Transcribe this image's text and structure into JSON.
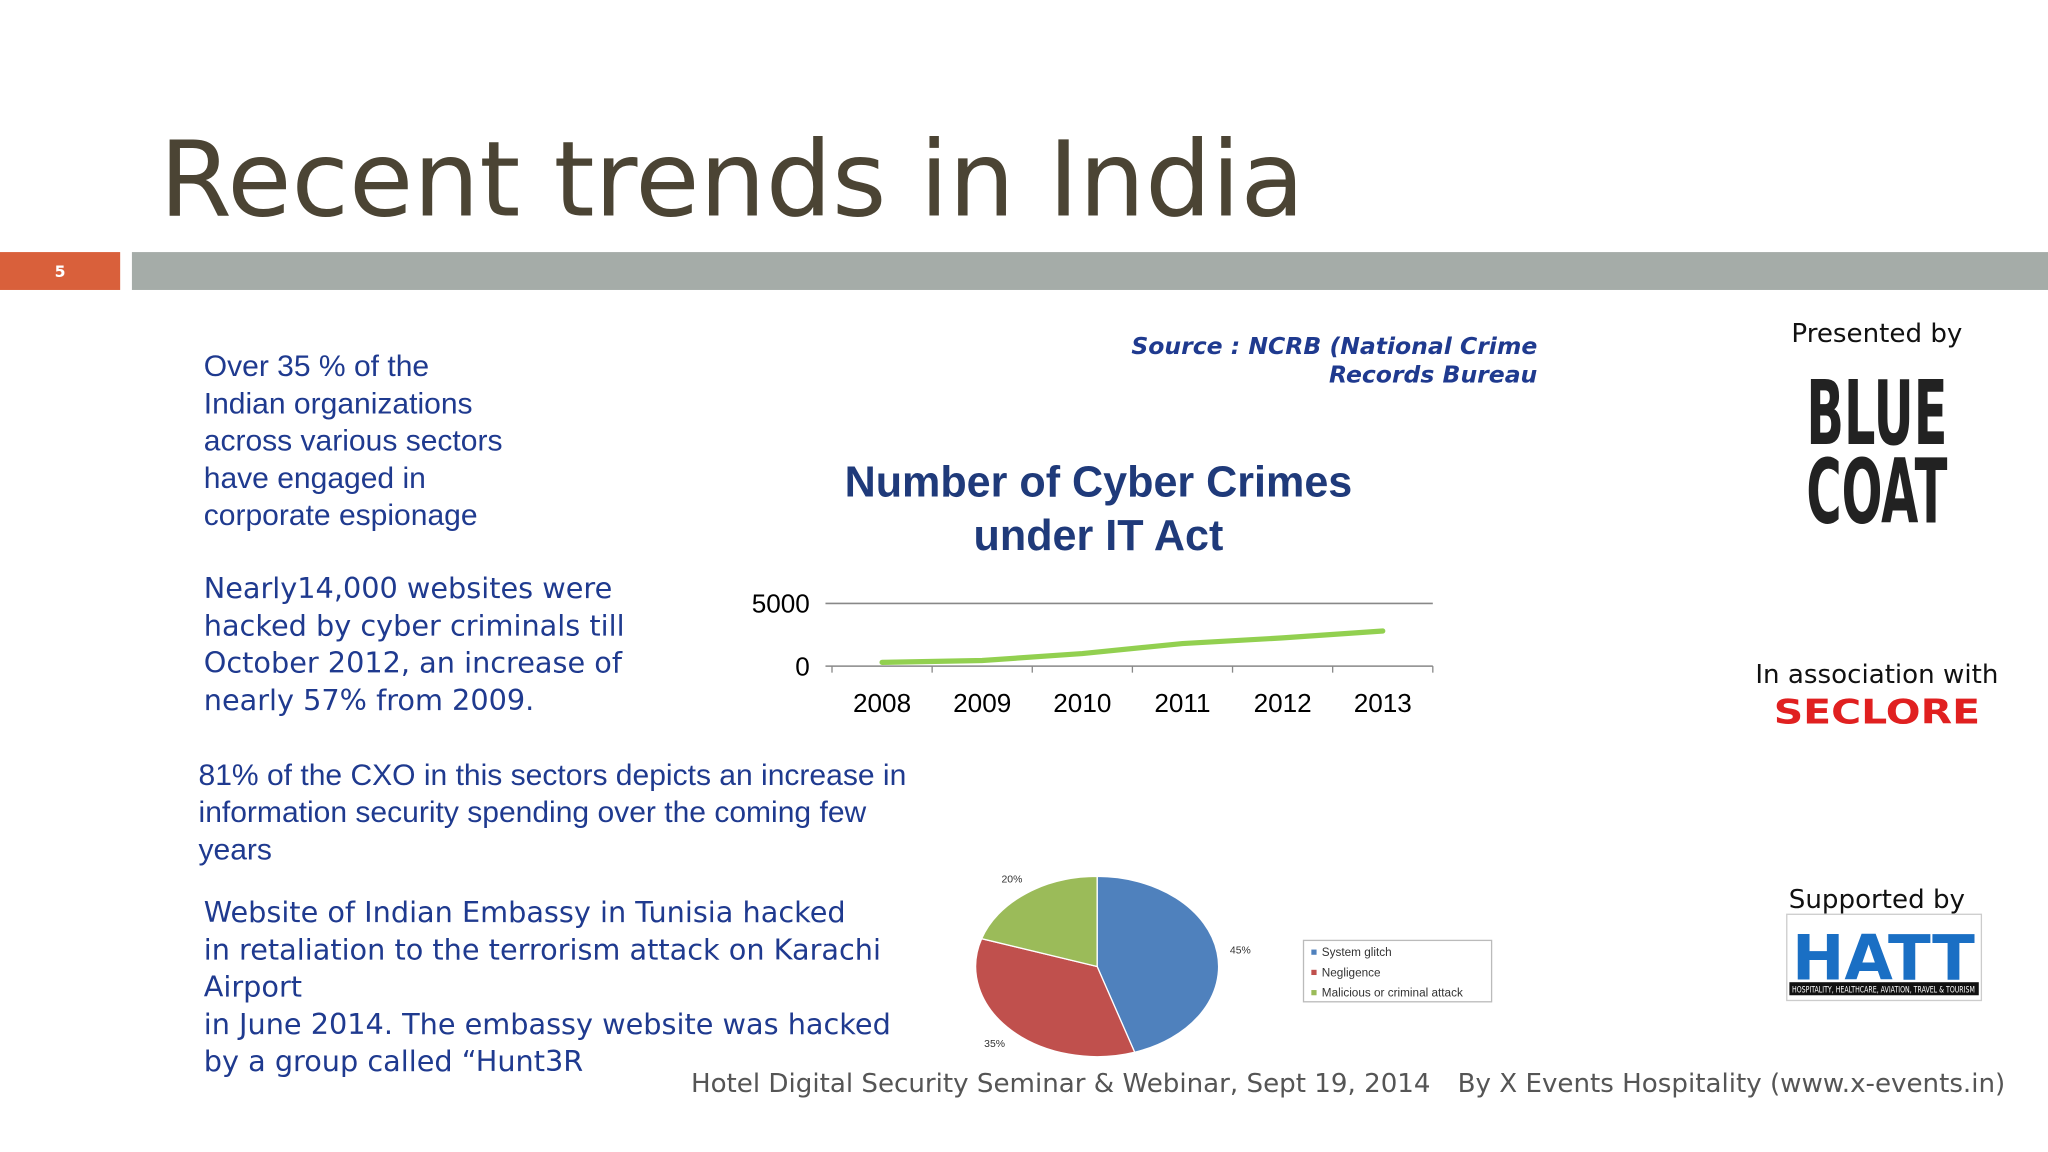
{
  "slide": {
    "title": "Recent trends in India",
    "number": "5",
    "source": [
      "Source : NCRB (National Crime",
      "Records Bureau"
    ],
    "paragraphs": [
      [
        "Over 35 % of the",
        "Indian organizations",
        "across various sectors",
        "have engaged in",
        "corporate espionage"
      ],
      [
        "Nearly14,000 websites were",
        "hacked by cyber criminals till",
        "October 2012, an increase of",
        "nearly 57% from 2009."
      ],
      [
        "81% of the CXO in this sectors depicts an  increase in",
        "information security spending over the coming few",
        "years"
      ],
      [
        "Website of Indian Embassy in Tunisia hacked",
        "in retaliation to the terrorism attack on Karachi",
        "Airport",
        "in June 2014. The embassy website was hacked",
        "by a group called “Hunt3R"
      ]
    ],
    "presented_by": "Presented by",
    "presenter_logo": [
      "BLUE",
      "COAT"
    ],
    "association": "In association with",
    "association_logo": "SECLORE",
    "supported_by": "Supported by",
    "supporter_logo": "HATT",
    "supporter_tagline": "HOSPITALITY, HEALTHCARE, AVIATION, TRAVEL & TOURISM",
    "footer_left": "Hotel Digital Security Seminar & Webinar, Sept 19, 2014",
    "footer_right": "By X Events Hospitality (www.x-events.in)"
  },
  "chart_data": [
    {
      "type": "line",
      "title": [
        "Number of Cyber Crimes",
        "under IT Act"
      ],
      "categories": [
        "2008",
        "2009",
        "2010",
        "2011",
        "2012",
        "2013"
      ],
      "values": [
        300,
        450,
        1000,
        1800,
        2250,
        2800
      ],
      "color": "#92d050",
      "ylim": [
        0,
        5000
      ],
      "yticks": [
        0,
        5000
      ],
      "grid": true
    },
    {
      "type": "pie",
      "categories": [
        "System glitch",
        "Negligence",
        "Malicious or criminal attack"
      ],
      "values": [
        45,
        35,
        20
      ],
      "value_labels": [
        "45%",
        "35%",
        "20%"
      ],
      "colors": [
        "#4f81bd",
        "#c0504d",
        "#9bbb59"
      ],
      "legend": "right"
    }
  ]
}
